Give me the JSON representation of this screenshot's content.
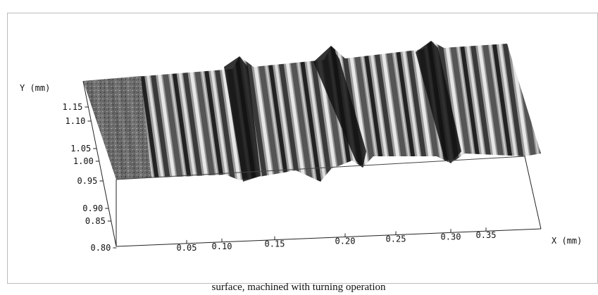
{
  "figure": {
    "y_axis_label": "Y (mm)",
    "y_ticks": [
      "1.15",
      "1.10",
      "1.05",
      "1.00",
      "0.95",
      "0.90",
      "0.85",
      "0.80"
    ],
    "x_axis_label": "X (mm)",
    "x_ticks": [
      "0.05",
      "0.10",
      "0.15",
      "0.20",
      "0.25",
      "0.30",
      "0.35"
    ],
    "caption": "surface, machined with turning operation"
  }
}
